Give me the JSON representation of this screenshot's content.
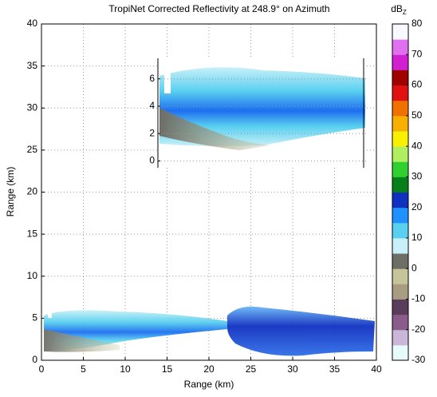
{
  "chart_data": [
    {
      "type": "image",
      "title": "TropiNet Corrected Reflectivity at 248.9° on Azimuth",
      "xlabel": "Range (km)",
      "ylabel": "Range (km)",
      "xlim": [
        0,
        40
      ],
      "ylim": [
        0,
        40
      ],
      "xticks": [
        0,
        5,
        10,
        15,
        20,
        25,
        30,
        35,
        40
      ],
      "yticks": [
        0,
        5,
        10,
        15,
        20,
        25,
        30,
        35,
        40
      ],
      "grid": true,
      "colorbar": {
        "label": "dB",
        "label_sub": "Z",
        "lim": [
          -30,
          80
        ],
        "ticks": [
          -30,
          -20,
          -10,
          0,
          10,
          20,
          30,
          40,
          50,
          60,
          70,
          80
        ],
        "colors": [
          "#e8fbfb",
          "#c9b6d8",
          "#8a5c8a",
          "#5a3c5c",
          "#a89c82",
          "#c8c49a",
          "#6e6e66",
          "#c8f0f8",
          "#5ad0f0",
          "#1e90ff",
          "#1030c0",
          "#08801a",
          "#30d030",
          "#b0f060",
          "#f8f000",
          "#f8b000",
          "#f07000",
          "#e01010",
          "#a00000",
          "#d020d0",
          "#e070f0",
          "#f8f8ff"
        ]
      }
    },
    {
      "type": "image",
      "ylim": [
        -0.5,
        7.5
      ],
      "yticks": [
        0,
        2,
        4,
        6
      ],
      "grid": true
    }
  ]
}
